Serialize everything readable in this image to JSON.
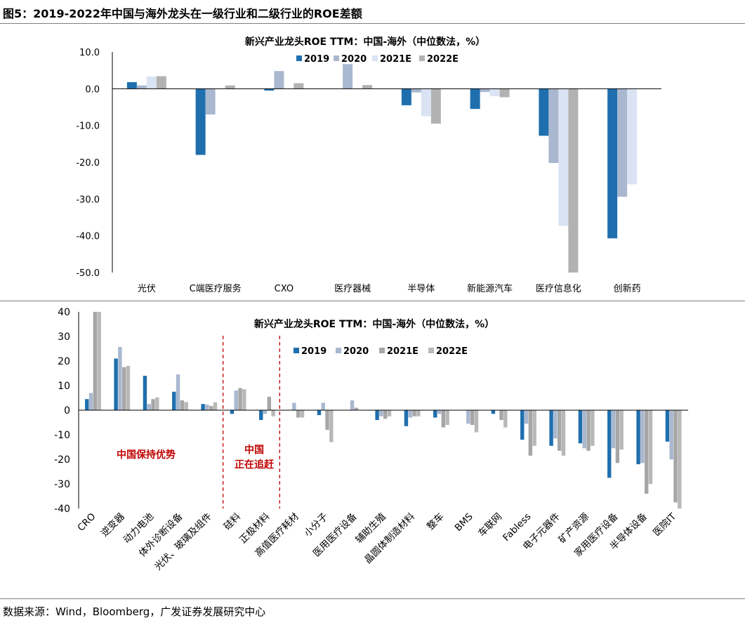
{
  "figure_title": "图5：2019-2022年中国与海外龙头在一级行业和二级行业的ROE差额",
  "source": "数据来源：Wind，Bloomberg，广发证券发展研究中心",
  "colors": {
    "s2019": "#1f6fae",
    "s2020": "#a9b7cf",
    "s2021": "#d9e3f3",
    "s2022": "#b2b2b2",
    "s2021b": "#a6a6a6",
    "s2022b": "#b8b8b8",
    "annotation": "#c00000"
  },
  "chart_data": [
    {
      "type": "bar",
      "title": "新兴产业龙头ROE TTM：中国-海外（中位数法，%）",
      "categories": [
        "光伏",
        "C端医疗服务",
        "CXO",
        "医疗器械",
        "半导体",
        "新能源汽车",
        "医疗信息化",
        "创新药"
      ],
      "ylim": [
        -50,
        10
      ],
      "yticks": [
        "10.0",
        "0.0",
        "-10.0",
        "-20.0",
        "-30.0",
        "-40.0",
        "-50.0"
      ],
      "series": [
        {
          "name": "2019",
          "values": [
            1.8,
            -18.0,
            -0.5,
            0.0,
            -4.5,
            -5.5,
            -12.8,
            -40.7
          ]
        },
        {
          "name": "2020",
          "values": [
            0.9,
            -7.0,
            4.8,
            6.7,
            -1.0,
            -0.9,
            -20.2,
            -29.4
          ]
        },
        {
          "name": "2021E",
          "values": [
            3.3,
            0.0,
            0.0,
            0.0,
            -7.5,
            -2.0,
            -37.3,
            -26.0
          ]
        },
        {
          "name": "2022E",
          "values": [
            3.4,
            0.9,
            1.5,
            1.0,
            -9.5,
            -2.3,
            -50.0,
            0.0
          ]
        }
      ]
    },
    {
      "type": "bar",
      "title": "新兴产业龙头ROE TTM：中国-海外（中位数法，%）",
      "categories": [
        "CRO",
        "逆变器",
        "动力电池",
        "体外诊断设备",
        "光伏、玻璃及组件",
        "硅料",
        "正极材料",
        "高值医疗耗材",
        "小分子",
        "医用医疗设备",
        "辅助生殖",
        "晶圆体制造材料",
        "整车",
        "BMS",
        "车联网",
        "Fabless",
        "电子元器件",
        "矿产资源",
        "家用医疗设备",
        "半导体设备",
        "医院IT"
      ],
      "ylim": [
        -40,
        40
      ],
      "yticks": [
        "40",
        "30",
        "20",
        "10",
        "0",
        "-10",
        "-20",
        "-30",
        "-40"
      ],
      "series": [
        {
          "name": "2019",
          "values": [
            4.5,
            21.0,
            14.0,
            7.5,
            2.5,
            -1.5,
            -4.0,
            0.0,
            -2.0,
            0.0,
            -4.0,
            -6.5,
            -3.0,
            0.0,
            -1.5,
            -12.0,
            -14.5,
            -13.5,
            -27.5,
            -22.0,
            -12.8
          ]
        },
        {
          "name": "2020",
          "values": [
            7.0,
            25.7,
            2.5,
            14.5,
            2.3,
            8.0,
            -1.5,
            3.0,
            3.0,
            4.0,
            -2.5,
            -3.0,
            -1.5,
            -5.5,
            0.0,
            -5.5,
            -11.5,
            -15.5,
            -15.5,
            -21.5,
            -20.0
          ]
        },
        {
          "name": "2021E",
          "values": [
            40.0,
            17.5,
            4.5,
            4.0,
            1.7,
            9.0,
            5.5,
            -3.0,
            -8.0,
            1.0,
            -3.5,
            -2.5,
            -7.0,
            -6.0,
            -4.0,
            -18.5,
            -16.5,
            -16.5,
            -21.5,
            -34.0,
            -37.5
          ]
        },
        {
          "name": "2022E",
          "values": [
            40.0,
            18.0,
            5.2,
            3.3,
            3.2,
            8.5,
            -2.5,
            -3.0,
            -13.0,
            0.0,
            -2.5,
            -2.5,
            -6.0,
            -9.0,
            -7.0,
            -14.5,
            -18.5,
            -14.5,
            -16.0,
            -30.0,
            -40.0
          ]
        }
      ],
      "annotations": [
        {
          "text": "中国保持优势"
        },
        {
          "text": "中国"
        },
        {
          "text": "正在追赶"
        }
      ]
    }
  ]
}
